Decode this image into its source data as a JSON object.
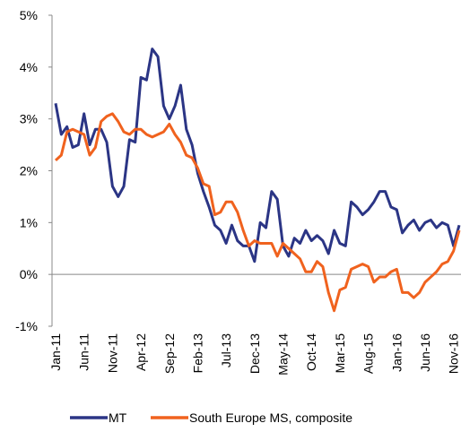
{
  "chart_data": {
    "type": "line",
    "categories": [
      "Jan-11",
      null,
      null,
      null,
      null,
      "Jun-11",
      null,
      null,
      null,
      null,
      "Nov-11",
      null,
      null,
      null,
      null,
      "Apr-12",
      null,
      null,
      null,
      null,
      "Sep-12",
      null,
      null,
      null,
      null,
      "Feb-13",
      null,
      null,
      null,
      null,
      "Jul-13",
      null,
      null,
      null,
      null,
      "Dec-13",
      null,
      null,
      null,
      null,
      "May-14",
      null,
      null,
      null,
      null,
      "Oct-14",
      null,
      null,
      null,
      null,
      "Mar-15",
      null,
      null,
      null,
      null,
      "Aug-15",
      null,
      null,
      null,
      null,
      "Jan-16",
      null,
      null,
      null,
      null,
      "Jun-16",
      null,
      null,
      null,
      null,
      "Nov-16",
      null
    ],
    "series": [
      {
        "name": "MT",
        "color": "#2b3585",
        "values": [
          3.3,
          2.7,
          2.85,
          2.45,
          2.5,
          3.1,
          2.5,
          2.8,
          2.8,
          2.55,
          1.7,
          1.5,
          1.7,
          2.6,
          2.55,
          3.8,
          3.75,
          4.35,
          4.2,
          3.25,
          3.0,
          3.25,
          3.65,
          2.8,
          2.5,
          1.95,
          1.6,
          1.3,
          0.95,
          0.85,
          0.6,
          0.95,
          0.65,
          0.55,
          0.55,
          0.25,
          1.0,
          0.9,
          1.6,
          1.45,
          0.55,
          0.35,
          0.7,
          0.6,
          0.85,
          0.65,
          0.75,
          0.65,
          0.4,
          0.85,
          0.6,
          0.55,
          1.4,
          1.3,
          1.15,
          1.25,
          1.4,
          1.6,
          1.6,
          1.3,
          1.25,
          0.8,
          0.95,
          1.05,
          0.85,
          1.0,
          1.05,
          0.9,
          1.0,
          0.95,
          0.55,
          0.95
        ]
      },
      {
        "name": "South Europe MS, composite",
        "color": "#f0621e",
        "values": [
          2.2,
          2.3,
          2.75,
          2.8,
          2.75,
          2.7,
          2.3,
          2.45,
          2.95,
          3.05,
          3.1,
          2.95,
          2.75,
          2.7,
          2.8,
          2.8,
          2.7,
          2.65,
          2.7,
          2.75,
          2.9,
          2.7,
          2.55,
          2.3,
          2.25,
          2.05,
          1.75,
          1.7,
          1.15,
          1.2,
          1.4,
          1.4,
          1.2,
          0.85,
          0.55,
          0.65,
          0.6,
          0.6,
          0.6,
          0.35,
          0.6,
          0.5,
          0.4,
          0.3,
          0.05,
          0.05,
          0.25,
          0.15,
          -0.35,
          -0.7,
          -0.3,
          -0.25,
          0.1,
          0.15,
          0.2,
          0.15,
          -0.15,
          -0.05,
          -0.05,
          0.05,
          0.1,
          -0.35,
          -0.35,
          -0.45,
          -0.35,
          -0.15,
          -0.05,
          0.05,
          0.2,
          0.25,
          0.45,
          0.85
        ]
      }
    ],
    "ylim": [
      -1,
      5
    ],
    "yticks": [
      {
        "value": -1,
        "label": "-1%"
      },
      {
        "value": 0,
        "label": "0%"
      },
      {
        "value": 1,
        "label": "1%"
      },
      {
        "value": 2,
        "label": "2%"
      },
      {
        "value": 3,
        "label": "3%"
      },
      {
        "value": 4,
        "label": "4%"
      },
      {
        "value": 5,
        "label": "5%"
      }
    ]
  }
}
